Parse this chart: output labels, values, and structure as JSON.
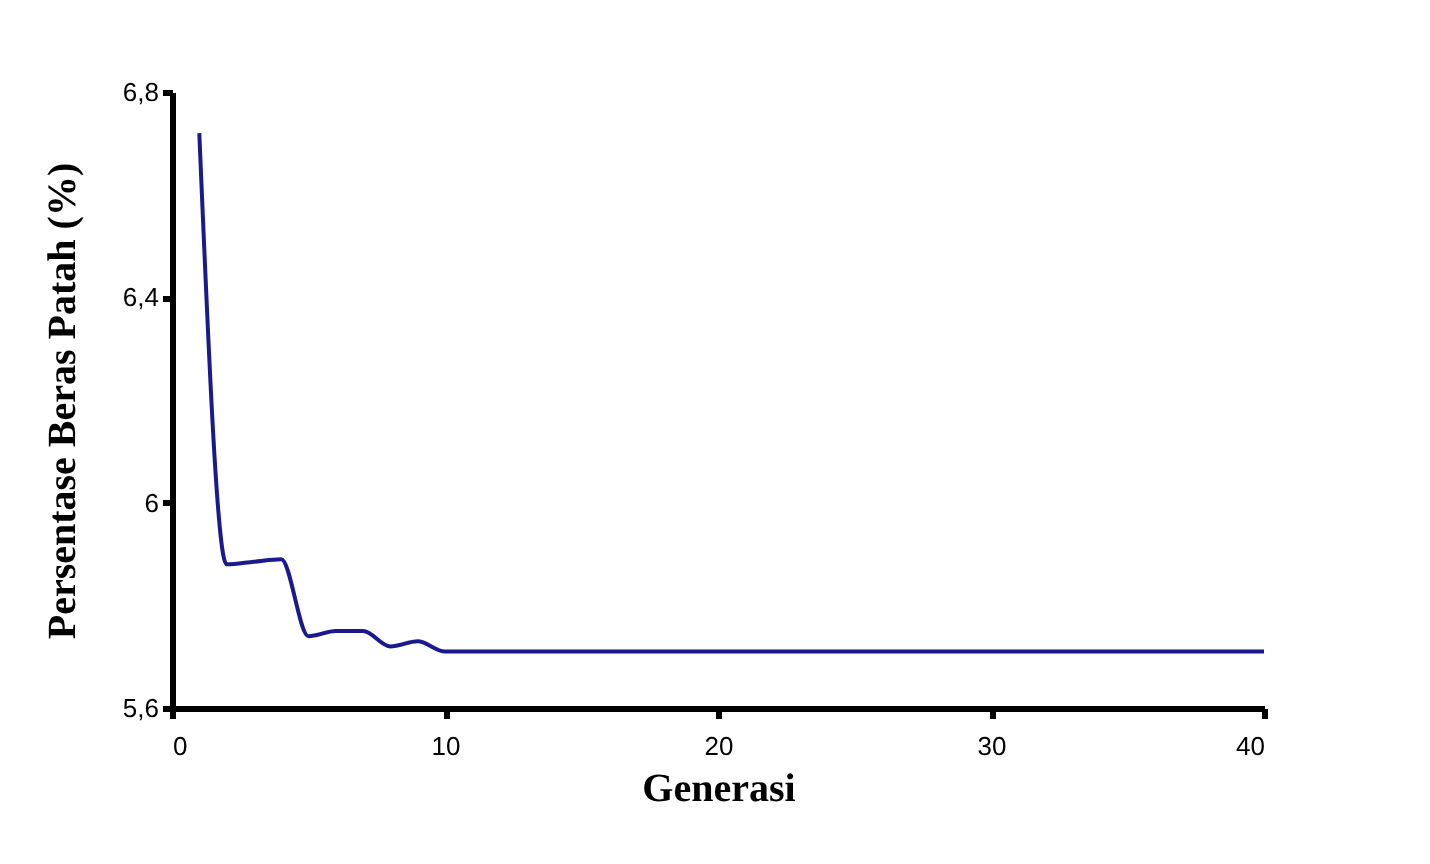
{
  "chart_data": {
    "type": "line",
    "xlabel": "Generasi",
    "ylabel": "Persentase Beras Patah (%)",
    "x": [
      1,
      2,
      3,
      4,
      5,
      6,
      7,
      8,
      9,
      10,
      11,
      20,
      30,
      40
    ],
    "series": [
      {
        "color": "#1a1a8c",
        "values": [
          6.72,
          5.88,
          5.885,
          5.89,
          5.74,
          5.75,
          5.75,
          5.72,
          5.73,
          5.71,
          5.71,
          5.71,
          5.71,
          5.71
        ]
      }
    ],
    "xlim": [
      0,
      40
    ],
    "xticks": [
      0,
      10,
      20,
      30,
      40
    ],
    "ylim": [
      5.6,
      6.8
    ],
    "yticks": [
      {
        "value": 5.6,
        "label": "5,6"
      },
      6,
      {
        "value": 6.4,
        "label": "6,4"
      },
      {
        "value": 6.8,
        "label": "6,8"
      }
    ],
    "grid": false,
    "legend": false,
    "marker": "none",
    "line_style": "solid"
  }
}
